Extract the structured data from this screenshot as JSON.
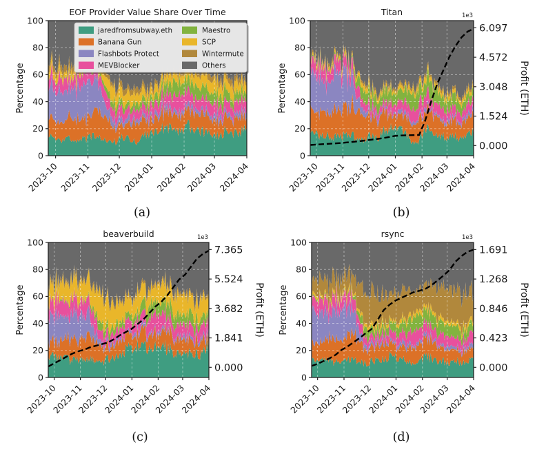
{
  "chart_data": {
    "type": "area",
    "description": "2x2 grid of 100% stacked area charts of EOF provider value share, daily, with cumulative profit dashed line on secondary axis for builder subplots",
    "x_axis": {
      "tick_labels": [
        "2023-10",
        "2023-11",
        "2023-12",
        "2024-01",
        "2024-02",
        "2024-03",
        "2024-04"
      ],
      "tick_days": [
        7,
        38,
        68,
        99,
        130,
        159,
        190
      ],
      "span_days": 190,
      "point_step_days": 7
    },
    "percent_axis": {
      "label": "Percentage",
      "ticks": [
        0,
        20,
        40,
        60,
        80,
        100
      ],
      "range": [
        0,
        100
      ]
    },
    "providers": [
      {
        "name": "jaredfromsubway.eth",
        "color": "#3f9d81"
      },
      {
        "name": "Banana Gun",
        "color": "#dc7127"
      },
      {
        "name": "Flashbots Protect",
        "color": "#8b86c1"
      },
      {
        "name": "MEVBlocker",
        "color": "#e8509d"
      },
      {
        "name": "Maestro",
        "color": "#82b33f"
      },
      {
        "name": "SCP",
        "color": "#e9b62a"
      },
      {
        "name": "Wintermute",
        "color": "#b1883c"
      }
    ],
    "others": {
      "name": "Others",
      "color": "#696969",
      "fill_to": 100
    },
    "profit_line": {
      "color": "#000000",
      "style": "dashed"
    },
    "grid": {
      "on": true,
      "style": "dashed",
      "color": "rgba(255,255,255,0.5)"
    },
    "charts": [
      {
        "id": "a",
        "title": "EOF Provider Value Share Over Time",
        "caption": "(a)",
        "legend": true,
        "series": [
          [
            13,
            14,
            12,
            13,
            11,
            12,
            14,
            13,
            12,
            10,
            14,
            12,
            10,
            16,
            18,
            20,
            21,
            19,
            20,
            22,
            20,
            18,
            16,
            15,
            18,
            15,
            17,
            23
          ],
          [
            15,
            13,
            14,
            16,
            17,
            15,
            18,
            20,
            16,
            12,
            10,
            12,
            14,
            12,
            10,
            11,
            12,
            10,
            11,
            12,
            13,
            12,
            12,
            11,
            12,
            10,
            11,
            7
          ],
          [
            24,
            26,
            22,
            20,
            23,
            25,
            22,
            20,
            8,
            5,
            4,
            4,
            3,
            3,
            3,
            4,
            4,
            3,
            3,
            4,
            3,
            3,
            3,
            4,
            3,
            3,
            4,
            4
          ],
          [
            8,
            9,
            10,
            8,
            9,
            8,
            9,
            8,
            9,
            8,
            7,
            6,
            6,
            7,
            8,
            8,
            9,
            10,
            12,
            10,
            9,
            8,
            9,
            8,
            8,
            7,
            8,
            9
          ],
          [
            1,
            1,
            1,
            1,
            1,
            1,
            1,
            2,
            4,
            6,
            5,
            4,
            5,
            5,
            5,
            6,
            8,
            10,
            9,
            8,
            10,
            9,
            8,
            7,
            9,
            6,
            7,
            6
          ],
          [
            5,
            5,
            4,
            5,
            4,
            5,
            4,
            5,
            8,
            10,
            9,
            8,
            7,
            6,
            6,
            7,
            6,
            6,
            6,
            8,
            7,
            8,
            9,
            8,
            7,
            9,
            8,
            6
          ],
          [
            5,
            4,
            5,
            4,
            4,
            4,
            4,
            4,
            3,
            3,
            4,
            4,
            4,
            3,
            3,
            3,
            3,
            3,
            3,
            3,
            3,
            4,
            4,
            4,
            4,
            4,
            4,
            3
          ]
        ]
      },
      {
        "id": "b",
        "title": "Titan",
        "caption": "(b)",
        "legend": false,
        "profit_axis": {
          "label": "Profit (ETH)",
          "offset_label": "1e3",
          "tick_labels": [
            "0.000",
            "1.524",
            "3.048",
            "4.572",
            "6.097"
          ],
          "max": 6.097
        },
        "profit_1e3": [
          0.03,
          0.05,
          0.07,
          0.09,
          0.11,
          0.13,
          0.16,
          0.19,
          0.22,
          0.26,
          0.3,
          0.34,
          0.38,
          0.44,
          0.5,
          0.52,
          0.53,
          0.54,
          0.55,
          1.3,
          2.3,
          3.2,
          3.9,
          4.6,
          5.15,
          5.6,
          5.9,
          6.05
        ],
        "series": [
          [
            15,
            16,
            14,
            15,
            13,
            14,
            16,
            15,
            13,
            11,
            15,
            13,
            18,
            20,
            22,
            20,
            15,
            10,
            12,
            20,
            18,
            16,
            14,
            13,
            15,
            12,
            14,
            18
          ],
          [
            18,
            16,
            17,
            19,
            20,
            18,
            21,
            23,
            20,
            16,
            14,
            15,
            14,
            12,
            10,
            11,
            12,
            14,
            15,
            13,
            14,
            13,
            12,
            11,
            12,
            10,
            11,
            12
          ],
          [
            25,
            27,
            23,
            21,
            24,
            26,
            23,
            21,
            8,
            4,
            3,
            3,
            2,
            2,
            2,
            3,
            3,
            2,
            2,
            3,
            2,
            2,
            2,
            3,
            2,
            2,
            3,
            3
          ],
          [
            8,
            9,
            10,
            8,
            9,
            8,
            9,
            8,
            8,
            7,
            6,
            5,
            5,
            6,
            7,
            7,
            8,
            9,
            10,
            9,
            8,
            7,
            8,
            7,
            7,
            6,
            7,
            8
          ],
          [
            1,
            1,
            1,
            1,
            1,
            1,
            1,
            2,
            8,
            10,
            9,
            8,
            8,
            8,
            7,
            8,
            10,
            12,
            11,
            10,
            12,
            10,
            9,
            8,
            9,
            6,
            7,
            6
          ],
          [
            2,
            2,
            2,
            2,
            2,
            2,
            2,
            2,
            3,
            4,
            3,
            3,
            3,
            2,
            2,
            3,
            3,
            3,
            3,
            4,
            3,
            3,
            3,
            3,
            3,
            3,
            3,
            2
          ],
          [
            2,
            2,
            2,
            2,
            2,
            2,
            2,
            2,
            2,
            2,
            2,
            2,
            2,
            2,
            2,
            2,
            2,
            2,
            2,
            2,
            2,
            2,
            2,
            2,
            2,
            2,
            2,
            2
          ]
        ]
      },
      {
        "id": "c",
        "title": "beaverbuild",
        "caption": "(c)",
        "legend": false,
        "profit_axis": {
          "label": "Profit (ETH)",
          "offset_label": "1e3",
          "tick_labels": [
            "0.000",
            "1.841",
            "3.682",
            "5.524",
            "7.365"
          ],
          "max": 7.365
        },
        "profit_1e3": [
          0.05,
          0.25,
          0.45,
          0.65,
          0.85,
          1.0,
          1.1,
          1.25,
          1.35,
          1.45,
          1.55,
          1.75,
          2.0,
          2.2,
          2.4,
          2.7,
          3.0,
          3.4,
          3.8,
          4.1,
          4.5,
          5.0,
          5.5,
          5.8,
          6.3,
          6.8,
          7.1,
          7.3
        ],
        "series": [
          [
            14,
            15,
            13,
            14,
            12,
            13,
            15,
            14,
            12,
            10,
            14,
            16,
            18,
            20,
            22,
            24,
            22,
            20,
            22,
            24,
            22,
            20,
            18,
            16,
            20,
            16,
            18,
            26
          ],
          [
            12,
            11,
            12,
            14,
            15,
            13,
            16,
            18,
            14,
            10,
            9,
            10,
            12,
            10,
            9,
            10,
            11,
            10,
            10,
            11,
            12,
            11,
            11,
            10,
            11,
            9,
            10,
            6
          ],
          [
            18,
            20,
            17,
            15,
            18,
            20,
            17,
            15,
            6,
            3,
            3,
            3,
            2,
            2,
            2,
            3,
            3,
            2,
            2,
            3,
            2,
            2,
            2,
            3,
            2,
            2,
            3,
            3
          ],
          [
            10,
            11,
            12,
            10,
            11,
            10,
            11,
            10,
            10,
            8,
            7,
            6,
            6,
            7,
            8,
            8,
            9,
            11,
            13,
            11,
            9,
            8,
            9,
            8,
            8,
            7,
            8,
            10
          ],
          [
            1,
            1,
            1,
            1,
            1,
            1,
            1,
            2,
            5,
            7,
            6,
            5,
            5,
            5,
            5,
            6,
            8,
            10,
            9,
            8,
            10,
            9,
            8,
            7,
            9,
            6,
            7,
            6
          ],
          [
            12,
            11,
            12,
            13,
            12,
            13,
            12,
            13,
            18,
            20,
            18,
            16,
            14,
            12,
            12,
            13,
            12,
            11,
            11,
            13,
            12,
            13,
            14,
            13,
            12,
            14,
            13,
            10
          ],
          [
            2,
            2,
            2,
            2,
            2,
            2,
            2,
            2,
            2,
            2,
            2,
            2,
            2,
            2,
            2,
            2,
            2,
            2,
            2,
            2,
            2,
            2,
            2,
            2,
            2,
            2,
            2,
            2
          ]
        ]
      },
      {
        "id": "d",
        "title": "rsync",
        "caption": "(d)",
        "legend": false,
        "profit_axis": {
          "label": "Profit (ETH)",
          "offset_label": "1e3",
          "tick_labels": [
            "0.000",
            "0.423",
            "0.846",
            "1.268",
            "1.691"
          ],
          "max": 1.691
        },
        "profit_1e3": [
          0.02,
          0.05,
          0.09,
          0.13,
          0.18,
          0.25,
          0.3,
          0.36,
          0.42,
          0.49,
          0.55,
          0.68,
          0.82,
          0.9,
          0.96,
          1.0,
          1.04,
          1.08,
          1.1,
          1.13,
          1.18,
          1.25,
          1.32,
          1.4,
          1.52,
          1.6,
          1.66,
          1.69
        ],
        "series": [
          [
            13,
            14,
            12,
            13,
            11,
            12,
            14,
            13,
            12,
            10,
            13,
            12,
            14,
            16,
            15,
            14,
            12,
            10,
            12,
            15,
            14,
            13,
            12,
            11,
            13,
            10,
            12,
            14
          ],
          [
            14,
            13,
            14,
            16,
            17,
            15,
            18,
            20,
            15,
            11,
            10,
            11,
            12,
            10,
            9,
            10,
            11,
            12,
            12,
            11,
            12,
            11,
            10,
            9,
            10,
            8,
            9,
            7
          ],
          [
            22,
            24,
            20,
            18,
            21,
            23,
            20,
            18,
            7,
            3,
            3,
            3,
            2,
            2,
            2,
            3,
            3,
            2,
            2,
            3,
            2,
            2,
            2,
            3,
            2,
            2,
            3,
            3
          ],
          [
            8,
            9,
            10,
            8,
            9,
            8,
            9,
            8,
            8,
            6,
            5,
            5,
            5,
            6,
            7,
            7,
            8,
            9,
            10,
            9,
            8,
            7,
            8,
            7,
            7,
            6,
            7,
            8
          ],
          [
            1,
            1,
            1,
            1,
            1,
            1,
            1,
            2,
            5,
            7,
            6,
            5,
            6,
            6,
            6,
            7,
            9,
            11,
            10,
            9,
            11,
            10,
            9,
            8,
            9,
            6,
            7,
            6
          ],
          [
            2,
            2,
            2,
            2,
            2,
            2,
            2,
            2,
            2,
            3,
            3,
            3,
            3,
            2,
            2,
            3,
            3,
            3,
            3,
            3,
            3,
            3,
            3,
            3,
            3,
            3,
            3,
            2
          ],
          [
            12,
            11,
            12,
            13,
            12,
            13,
            12,
            13,
            18,
            22,
            24,
            22,
            20,
            22,
            24,
            22,
            20,
            18,
            17,
            18,
            20,
            22,
            24,
            26,
            22,
            26,
            24,
            22
          ]
        ]
      }
    ]
  }
}
